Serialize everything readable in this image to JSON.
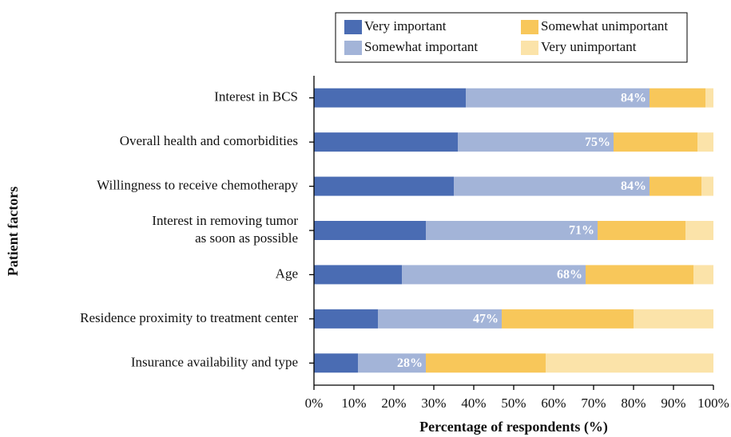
{
  "chart_data": {
    "type": "stacked_barh",
    "categories": [
      "Interest in BCS",
      "Overall health and comorbidities",
      "Willingness to receive chemotherapy",
      "Interest in removing tumor\nas soon as possible",
      "Age",
      "Residence proximity to treatment center",
      "Insurance availability and type"
    ],
    "series": [
      {
        "name": "Very important",
        "color": "#4a6cb3",
        "values": [
          38,
          36,
          35,
          28,
          22,
          16,
          11
        ]
      },
      {
        "name": "Somewhat important",
        "color": "#a3b4d8",
        "values": [
          46,
          39,
          49,
          43,
          46,
          31,
          17
        ]
      },
      {
        "name": "Somewhat unimportant",
        "color": "#f8c75a",
        "values": [
          14,
          21,
          13,
          22,
          27,
          33,
          30
        ]
      },
      {
        "name": "Very unimportant",
        "color": "#fbe3a9",
        "values": [
          2,
          4,
          3,
          7,
          5,
          20,
          42
        ]
      }
    ],
    "totals": {
      "values": [
        84,
        75,
        84,
        71,
        68,
        47,
        28
      ],
      "value_labels": [
        "84%",
        "75%",
        "84%",
        "71%",
        "68%",
        "47%",
        "28%"
      ]
    },
    "xlabel": "Percentage of respondents (%)",
    "ylabel": "Patient factors",
    "xlim": [
      0,
      100
    ],
    "xticks": [
      {
        "value": 0,
        "label": "0%"
      },
      {
        "value": 10,
        "label": "10%"
      },
      {
        "value": 20,
        "label": "20%"
      },
      {
        "value": 30,
        "label": "30%"
      },
      {
        "value": 40,
        "label": "40%"
      },
      {
        "value": 50,
        "label": "50%"
      },
      {
        "value": 60,
        "label": "60%"
      },
      {
        "value": 70,
        "label": "70%"
      },
      {
        "value": 80,
        "label": "80%"
      },
      {
        "value": 90,
        "label": "90%"
      },
      {
        "value": 100,
        "label": "100%"
      }
    ],
    "legend": "top"
  }
}
